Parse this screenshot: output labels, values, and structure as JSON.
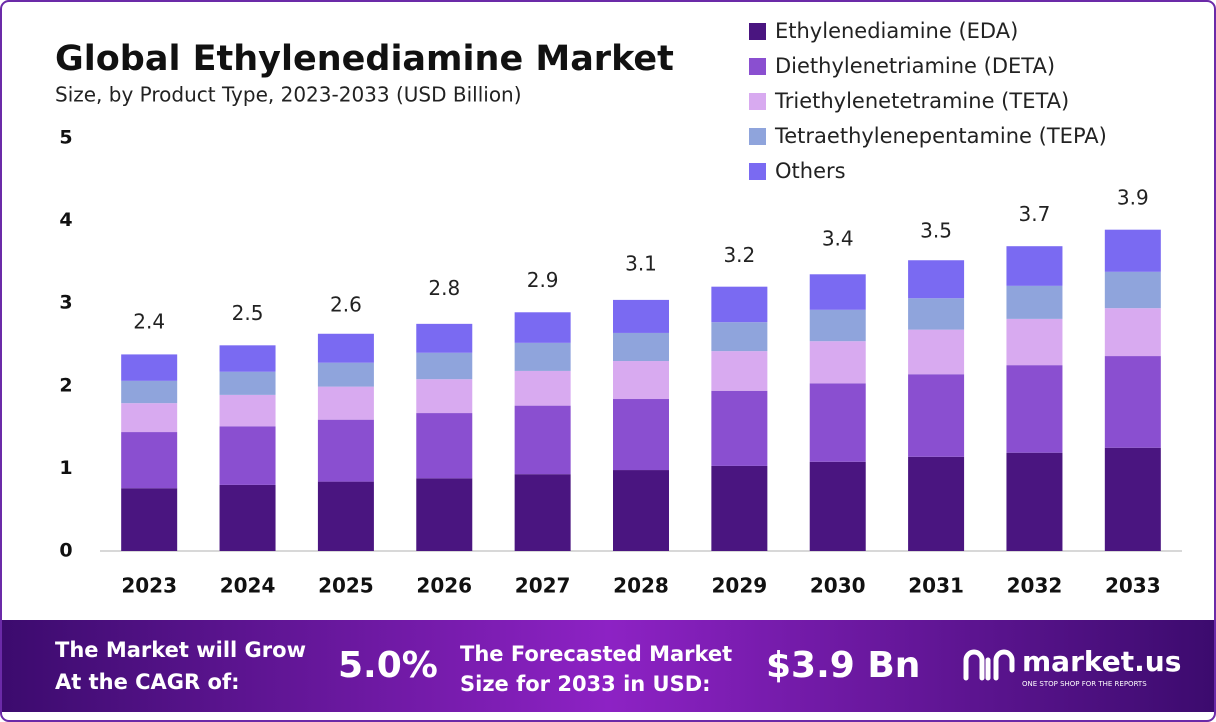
{
  "chart_data": {
    "type": "stacked_bar",
    "title": "Global Ethylenediamine Market",
    "subtitle": "Size, by Product Type, 2023-2033 (USD Billion)",
    "categories": [
      "2023",
      "2024",
      "2025",
      "2026",
      "2027",
      "2028",
      "2029",
      "2030",
      "2031",
      "2032",
      "2033"
    ],
    "series": [
      {
        "name": "Ethylenediamine (EDA)",
        "color": "#4a1580",
        "values": [
          0.76,
          0.8,
          0.84,
          0.88,
          0.93,
          0.98,
          1.03,
          1.08,
          1.14,
          1.19,
          1.25
        ]
      },
      {
        "name": "Diethylenetriamine (DETA)",
        "color": "#8a4fd0",
        "values": [
          0.68,
          0.71,
          0.75,
          0.79,
          0.83,
          0.86,
          0.91,
          0.95,
          1.0,
          1.06,
          1.11
        ]
      },
      {
        "name": "Triethylenetetramine (TETA)",
        "color": "#d8aaf0",
        "values": [
          0.35,
          0.38,
          0.4,
          0.41,
          0.42,
          0.46,
          0.48,
          0.51,
          0.54,
          0.56,
          0.58
        ]
      },
      {
        "name": "Tetraethylenepentamine (TEPA)",
        "color": "#8fa4dc",
        "values": [
          0.27,
          0.28,
          0.29,
          0.32,
          0.34,
          0.34,
          0.35,
          0.38,
          0.38,
          0.4,
          0.44
        ]
      },
      {
        "name": "Others",
        "color": "#7a6af2",
        "values": [
          0.32,
          0.32,
          0.35,
          0.35,
          0.37,
          0.4,
          0.43,
          0.43,
          0.46,
          0.48,
          0.51
        ]
      }
    ],
    "totals": [
      2.4,
      2.5,
      2.6,
      2.8,
      2.9,
      3.1,
      3.2,
      3.4,
      3.5,
      3.7,
      3.9
    ],
    "ylim": [
      0,
      5
    ],
    "yticks": [
      0,
      1,
      2,
      3,
      4,
      5
    ],
    "grid": false
  },
  "footer": {
    "cagr_label": [
      "The Market will Grow",
      "At the CAGR of:"
    ],
    "cagr_value": "5.0%",
    "forecast_label": [
      "The Forecasted Market",
      "Size for 2033 in USD:"
    ],
    "forecast_value": "$3.9 Bn",
    "brand": "market.us",
    "tagline": "ONE STOP SHOP FOR THE REPORTS"
  }
}
